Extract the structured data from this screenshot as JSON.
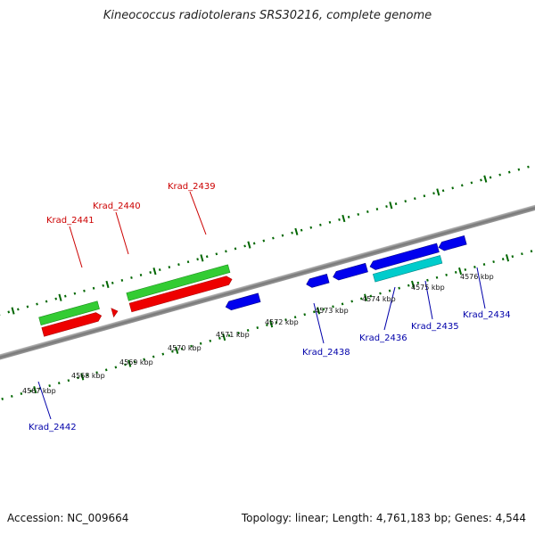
{
  "title": "Kineococcus radiotolerans SRS30216, complete genome",
  "footer": {
    "accession": "Accession: NC_009664",
    "stats": "Topology: linear; Length: 4,761,183 bp; Genes: 4,544"
  },
  "scale_labels": [
    "4567 kbp",
    "4568 kbp",
    "4569 kbp",
    "4570 kbp",
    "4571 kbp",
    "4572 kbp",
    "4573 kbp",
    "4574 kbp",
    "4575 kbp",
    "4576 kbp"
  ],
  "gene_labels": {
    "top": [
      "Krad_2441",
      "Krad_2440",
      "Krad_2439"
    ],
    "bottom": [
      "Krad_2442",
      "Krad_2438",
      "Krad_2436",
      "Krad_2435",
      "Krad_2434"
    ]
  },
  "colors": {
    "forward_gene": "#ff0000",
    "forward_highlight": "#33cc33",
    "reverse_gene": "#0000ee",
    "reverse_highlight": "#00cccc",
    "backbone": "#888888",
    "ticks": "#006600",
    "top_label": "#cc0000",
    "bottom_label": "#0000aa"
  }
}
